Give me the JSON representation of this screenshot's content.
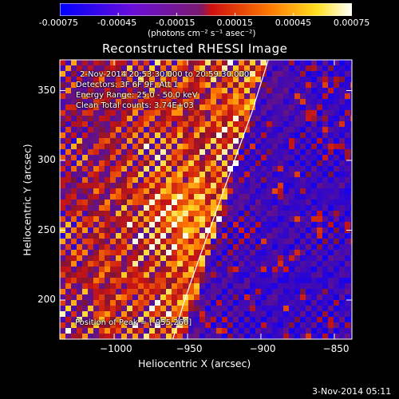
{
  "colorbar": {
    "tick_labels": [
      "-0.00075",
      "-0.00045",
      "-0.00015",
      "0.00015",
      "0.00045",
      "0.00075"
    ],
    "units": "(photons cm⁻² s⁻¹ asec⁻²)"
  },
  "chart_data": {
    "type": "heatmap",
    "title": "Reconstructed RHESSI Image",
    "xlabel": "Heliocentric X (arcsec)",
    "ylabel": "Heliocentric Y (arcsec)",
    "xlim": [
      -1037,
      -838
    ],
    "ylim": [
      172,
      372
    ],
    "x_ticks": [
      -1000,
      -950,
      -900,
      -850
    ],
    "x_tick_labels": [
      "−1000",
      "−950",
      "−900",
      "−850"
    ],
    "y_ticks": [
      200,
      250,
      300,
      350
    ],
    "y_tick_labels": [
      "200",
      "250",
      "300",
      "350"
    ],
    "color_range": [
      -0.00075,
      0.00075
    ],
    "colormap": "blue-purple-red-orange-yellow-white",
    "peak": {
      "x": -955,
      "y": 260
    },
    "limb_line": {
      "x": [
        -960,
        -952,
        -942,
        -930,
        -918,
        -906,
        -895
      ],
      "y": [
        172,
        200,
        230,
        265,
        300,
        335,
        372
      ]
    },
    "annotations": [
      "2-Nov-2014 20:53:30.000 to 20:59:30.000",
      "Detectors: 3F 6F 9F, Att 1",
      "Energy Range: 25.0 - 50.0 keV",
      "Clean    Total counts: 3.74E+03"
    ],
    "peak_label": "Position of Peak = [-955,260]"
  },
  "footer": {
    "timestamp": "3-Nov-2014 05:11"
  }
}
